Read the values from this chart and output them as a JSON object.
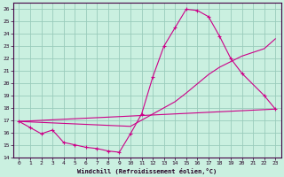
{
  "xlabel": "Windchill (Refroidissement éolien,°C)",
  "background_color": "#caf0e0",
  "grid_color": "#99ccbb",
  "line_color": "#cc0088",
  "xlim": [
    -0.5,
    23.5
  ],
  "ylim": [
    14,
    26.5
  ],
  "xticks": [
    0,
    1,
    2,
    3,
    4,
    5,
    6,
    7,
    8,
    9,
    10,
    11,
    12,
    13,
    14,
    15,
    16,
    17,
    18,
    19,
    20,
    21,
    22,
    23
  ],
  "yticks": [
    14,
    15,
    16,
    17,
    18,
    19,
    20,
    21,
    22,
    23,
    24,
    25,
    26
  ],
  "line1_x": [
    0,
    1,
    2,
    3,
    4,
    5,
    6,
    7,
    8,
    9,
    10,
    11,
    12,
    13,
    14,
    15,
    16,
    17,
    18,
    19,
    20,
    22,
    23
  ],
  "line1_y": [
    16.9,
    16.4,
    15.9,
    16.2,
    15.2,
    15.0,
    14.8,
    14.7,
    14.5,
    14.4,
    15.9,
    17.5,
    20.5,
    23.0,
    24.5,
    26.0,
    25.9,
    25.4,
    23.8,
    22.0,
    20.8,
    19.0,
    17.9
  ],
  "line2_x": [
    0,
    10,
    14,
    15,
    17,
    18,
    20,
    22,
    23
  ],
  "line2_y": [
    16.9,
    16.5,
    18.5,
    19.2,
    20.7,
    21.3,
    22.2,
    22.8,
    23.6
  ],
  "line3_x": [
    0,
    23
  ],
  "line3_y": [
    16.9,
    17.9
  ]
}
